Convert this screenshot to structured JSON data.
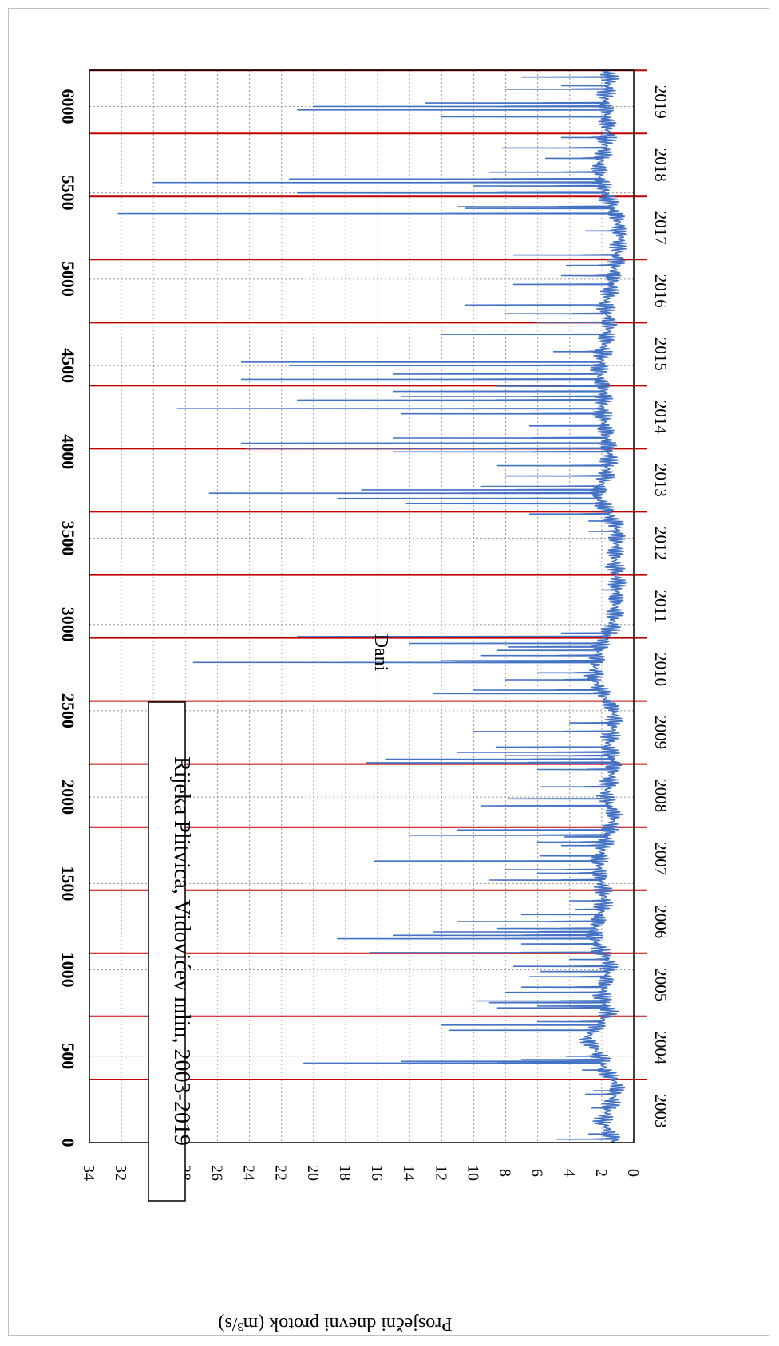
{
  "chart_data": {
    "type": "line",
    "orientation": "rotated-90-clockwise",
    "title": "Rijeka Plitvica,  Vidovićev mlin,  2003-2019",
    "xlabel": "Dani",
    "ylabel": "Prosječni dnevni protok (m³/s)",
    "xlim": [
      0,
      6210
    ],
    "ylim": [
      0,
      34
    ],
    "x_ticks": [
      0,
      500,
      1000,
      1500,
      2000,
      2500,
      3000,
      3500,
      4000,
      4500,
      5000,
      5500,
      6000
    ],
    "y_ticks": [
      0,
      2,
      4,
      6,
      8,
      10,
      12,
      14,
      16,
      18,
      20,
      22,
      24,
      26,
      28,
      30,
      32,
      34
    ],
    "grid": true,
    "series_color": "#4472C4",
    "year_line_color": "#C00000",
    "year_boundaries": [
      365,
      731,
      1096,
      1461,
      1826,
      2192,
      2557,
      2922,
      3287,
      3653,
      4018,
      4383,
      4748,
      5114,
      5479,
      5844,
      6209
    ],
    "year_labels": [
      "2003",
      "2004",
      "2005",
      "2006",
      "2007",
      "2008",
      "2009",
      "2010",
      "2011",
      "2012",
      "2013",
      "2014",
      "2015",
      "2016",
      "2017",
      "2018",
      "2019"
    ],
    "series": [
      {
        "baseline": [
          [
            0,
            1.2
          ],
          [
            60,
            1.5
          ],
          [
            120,
            2.0
          ],
          [
            180,
            1.6
          ],
          [
            250,
            1.3
          ],
          [
            320,
            1.0
          ],
          [
            365,
            1.3
          ],
          [
            420,
            1.8
          ],
          [
            520,
            2.2
          ],
          [
            600,
            3.0
          ],
          [
            700,
            2.0
          ],
          [
            760,
            1.5
          ],
          [
            850,
            2.0
          ],
          [
            950,
            1.7
          ],
          [
            1050,
            1.5
          ],
          [
            1100,
            2.0
          ],
          [
            1200,
            2.5
          ],
          [
            1300,
            2.2
          ],
          [
            1400,
            1.8
          ],
          [
            1500,
            2.0
          ],
          [
            1600,
            2.2
          ],
          [
            1700,
            2.0
          ],
          [
            1800,
            1.5
          ],
          [
            1900,
            1.2
          ],
          [
            2000,
            1.8
          ],
          [
            2100,
            1.5
          ],
          [
            2200,
            1.2
          ],
          [
            2300,
            1.6
          ],
          [
            2400,
            1.3
          ],
          [
            2500,
            1.2
          ],
          [
            2600,
            2.0
          ],
          [
            2700,
            2.5
          ],
          [
            2800,
            2.3
          ],
          [
            2900,
            2.0
          ],
          [
            2950,
            1.5
          ],
          [
            3050,
            1.2
          ],
          [
            3150,
            1.1
          ],
          [
            3250,
            1.0
          ],
          [
            3350,
            1.2
          ],
          [
            3450,
            1.1
          ],
          [
            3550,
            1.0
          ],
          [
            3650,
            1.6
          ],
          [
            3750,
            2.3
          ],
          [
            3850,
            1.8
          ],
          [
            3950,
            1.5
          ],
          [
            4050,
            1.6
          ],
          [
            4150,
            1.8
          ],
          [
            4250,
            2.0
          ],
          [
            4350,
            1.8
          ],
          [
            4450,
            2.2
          ],
          [
            4550,
            2.0
          ],
          [
            4650,
            1.7
          ],
          [
            4750,
            1.5
          ],
          [
            4850,
            1.8
          ],
          [
            4950,
            1.4
          ],
          [
            5050,
            1.2
          ],
          [
            5150,
            1.0
          ],
          [
            5250,
            0.8
          ],
          [
            5350,
            1.0
          ],
          [
            5450,
            1.5
          ],
          [
            5550,
            2.0
          ],
          [
            5650,
            2.2
          ],
          [
            5750,
            1.8
          ],
          [
            5850,
            1.6
          ],
          [
            5950,
            1.7
          ],
          [
            6050,
            1.8
          ],
          [
            6150,
            1.5
          ],
          [
            6210,
            1.6
          ]
        ],
        "peaks": [
          [
            20,
            4.8
          ],
          [
            50,
            2.8
          ],
          [
            110,
            2.4
          ],
          [
            200,
            2.6
          ],
          [
            280,
            3.0
          ],
          [
            300,
            2.5
          ],
          [
            420,
            3.2
          ],
          [
            460,
            20.6
          ],
          [
            470,
            14.5
          ],
          [
            480,
            7.0
          ],
          [
            500,
            4.2
          ],
          [
            580,
            2.5
          ],
          [
            650,
            11.5
          ],
          [
            680,
            12.0
          ],
          [
            700,
            6.0
          ],
          [
            780,
            8.5
          ],
          [
            790,
            6.0
          ],
          [
            810,
            9.0
          ],
          [
            820,
            9.8
          ],
          [
            870,
            8.0
          ],
          [
            900,
            7.0
          ],
          [
            960,
            6.5
          ],
          [
            990,
            5.8
          ],
          [
            1020,
            7.5
          ],
          [
            1060,
            4.0
          ],
          [
            1100,
            16.5
          ],
          [
            1150,
            7.0
          ],
          [
            1180,
            18.5
          ],
          [
            1200,
            15.0
          ],
          [
            1220,
            12.5
          ],
          [
            1240,
            8.5
          ],
          [
            1280,
            11.0
          ],
          [
            1320,
            7.0
          ],
          [
            1350,
            3.6
          ],
          [
            1400,
            4.0
          ],
          [
            1520,
            9.0
          ],
          [
            1560,
            6.0
          ],
          [
            1580,
            8.0
          ],
          [
            1630,
            16.2
          ],
          [
            1660,
            5.8
          ],
          [
            1720,
            4.5
          ],
          [
            1740,
            6.0
          ],
          [
            1770,
            4.3
          ],
          [
            1780,
            14.0
          ],
          [
            1810,
            11.0
          ],
          [
            1950,
            9.5
          ],
          [
            1990,
            7.9
          ],
          [
            2060,
            5.8
          ],
          [
            2160,
            6.0
          ],
          [
            2200,
            16.7
          ],
          [
            2220,
            15.5
          ],
          [
            2240,
            8.0
          ],
          [
            2260,
            11.0
          ],
          [
            2290,
            8.6
          ],
          [
            2380,
            10.0
          ],
          [
            2430,
            4.0
          ],
          [
            2600,
            12.5
          ],
          [
            2620,
            10.0
          ],
          [
            2680,
            8.0
          ],
          [
            2720,
            6.0
          ],
          [
            2780,
            27.5
          ],
          [
            2790,
            12.0
          ],
          [
            2820,
            9.5
          ],
          [
            2850,
            8.5
          ],
          [
            2870,
            7.8
          ],
          [
            2890,
            14.0
          ],
          [
            2930,
            21.0
          ],
          [
            2950,
            4.5
          ],
          [
            3200,
            2.0
          ],
          [
            3540,
            2.8
          ],
          [
            3600,
            2.8
          ],
          [
            3640,
            6.5
          ],
          [
            3700,
            14.2
          ],
          [
            3730,
            18.5
          ],
          [
            3760,
            26.5
          ],
          [
            3780,
            17.0
          ],
          [
            3800,
            9.5
          ],
          [
            3860,
            8.0
          ],
          [
            3920,
            8.5
          ],
          [
            4000,
            15.0
          ],
          [
            4020,
            24.2
          ],
          [
            4050,
            24.5
          ],
          [
            4080,
            15.0
          ],
          [
            4150,
            6.5
          ],
          [
            4220,
            14.5
          ],
          [
            4250,
            28.5
          ],
          [
            4300,
            21.0
          ],
          [
            4320,
            14.5
          ],
          [
            4350,
            15.0
          ],
          [
            4380,
            8.5
          ],
          [
            4420,
            24.5
          ],
          [
            4450,
            15.0
          ],
          [
            4500,
            21.5
          ],
          [
            4520,
            24.5
          ],
          [
            4580,
            5.0
          ],
          [
            4680,
            12.0
          ],
          [
            4750,
            6.0
          ],
          [
            4800,
            8.0
          ],
          [
            4850,
            10.5
          ],
          [
            4970,
            7.5
          ],
          [
            5020,
            4.5
          ],
          [
            5080,
            4.2
          ],
          [
            5140,
            7.5
          ],
          [
            5280,
            3.0
          ],
          [
            5380,
            32.2
          ],
          [
            5410,
            10.5
          ],
          [
            5420,
            11.0
          ],
          [
            5500,
            21.0
          ],
          [
            5540,
            10.0
          ],
          [
            5560,
            30.0
          ],
          [
            5580,
            21.5
          ],
          [
            5620,
            9.0
          ],
          [
            5700,
            5.5
          ],
          [
            5760,
            8.2
          ],
          [
            5820,
            4.5
          ],
          [
            5940,
            12.0
          ],
          [
            5980,
            21.0
          ],
          [
            6000,
            20.0
          ],
          [
            6020,
            13.0
          ],
          [
            6100,
            8.0
          ],
          [
            6120,
            4.5
          ],
          [
            6170,
            7.0
          ]
        ]
      }
    ]
  }
}
